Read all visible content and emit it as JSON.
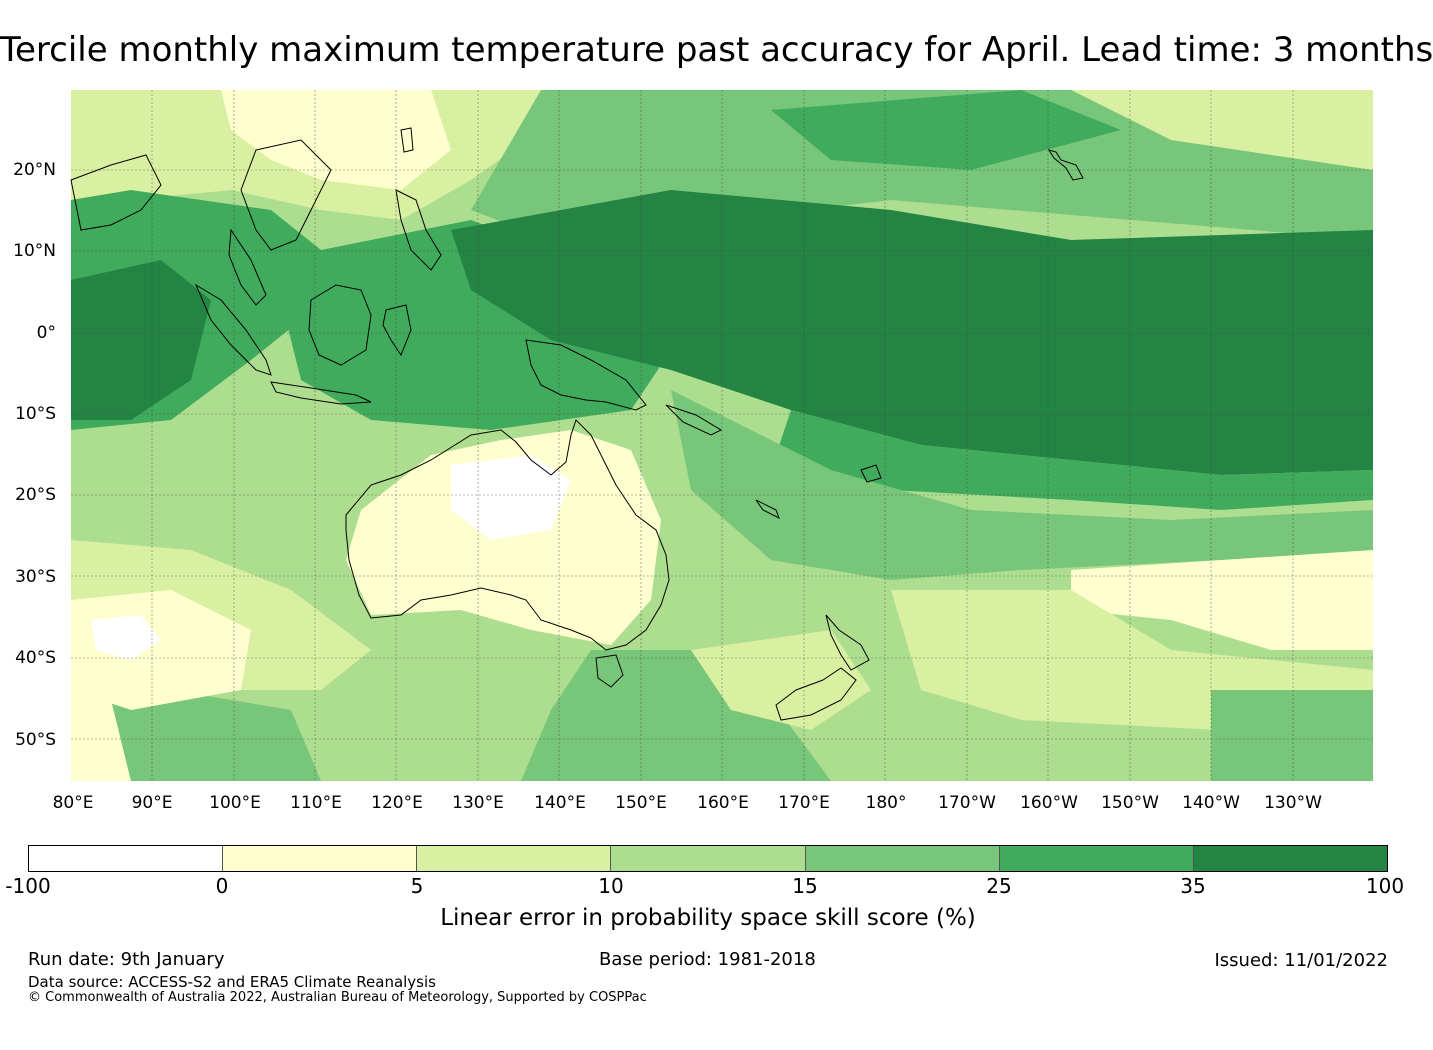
{
  "title": "Tercile monthly maximum temperature past accuracy for April. Lead time: 3 months",
  "map": {
    "region": "Western and South Pacific, Maritime Continent, Australia",
    "lat_labels": [
      "20°N",
      "10°N",
      "0°",
      "10°S",
      "20°S",
      "30°S",
      "40°S",
      "50°S"
    ],
    "lon_labels": [
      "80°E",
      "90°E",
      "100°E",
      "110°E",
      "120°E",
      "130°E",
      "140°E",
      "150°E",
      "160°E",
      "170°E",
      "180°",
      "170°W",
      "160°W",
      "150°W",
      "140°W",
      "130°W"
    ]
  },
  "legend": {
    "label": "Linear error in probability space skill score (%)",
    "ticks": [
      "-100",
      "0",
      "5",
      "10",
      "15",
      "25",
      "35",
      "100"
    ],
    "bins": [
      {
        "range": "-100 to 0",
        "color": "#ffffff"
      },
      {
        "range": "0 to 5",
        "color": "#fefecf"
      },
      {
        "range": "5 to 10",
        "color": "#d9f0a3"
      },
      {
        "range": "10 to 15",
        "color": "#addd8e"
      },
      {
        "range": "15 to 25",
        "color": "#78c679"
      },
      {
        "range": "25 to 35",
        "color": "#41ab5d"
      },
      {
        "range": "35 to 100",
        "color": "#238443"
      }
    ]
  },
  "footer": {
    "run_date": "Run date: 9th January",
    "base_period": "Base period: 1981-2018",
    "issued": "Issued: 11/01/2022",
    "data_source": "Data source: ACCESS-S2 and ERA5 Climate Reanalysis",
    "copyright": "© Commonwealth of Australia 2022, Australian Bureau of Meteorology, Supported by COSPPac"
  }
}
